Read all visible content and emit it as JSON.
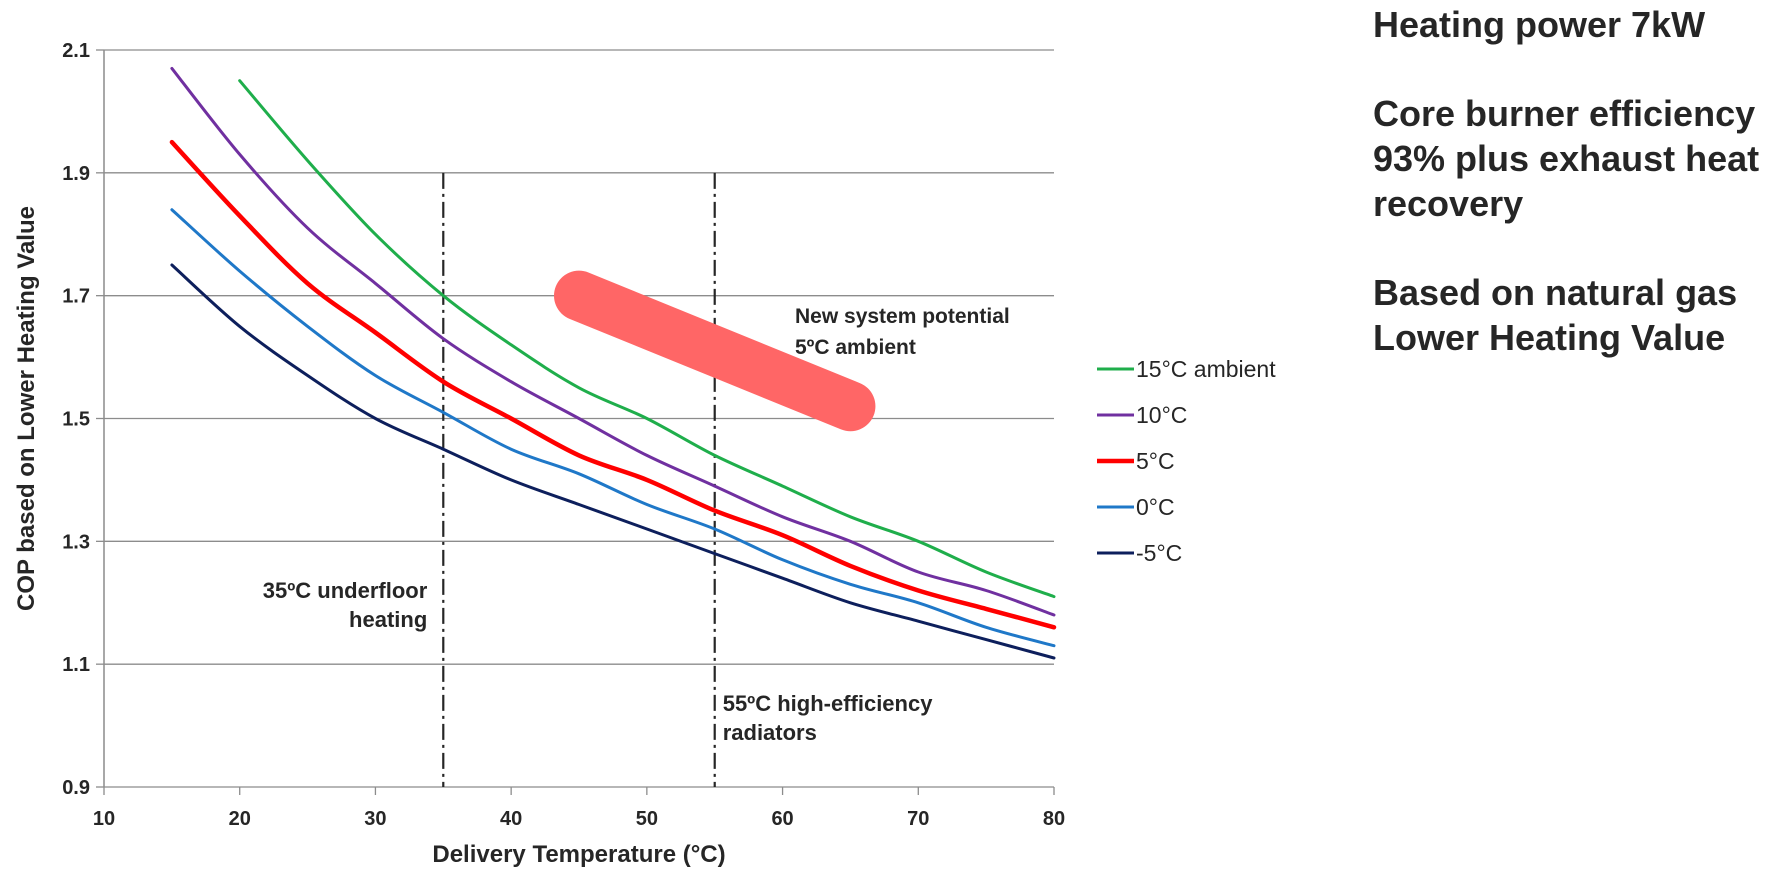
{
  "chart_data": {
    "type": "line",
    "xlabel": "Delivery Temperature (°C)",
    "ylabel": "COP based on Lower Heating Value",
    "xlim": [
      10,
      80
    ],
    "ylim": [
      0.9,
      2.1
    ],
    "x_ticks": [
      "10",
      "20",
      "30",
      "40",
      "50",
      "60",
      "70",
      "80"
    ],
    "y_ticks": [
      "0.9",
      "1.1",
      "1.3",
      "1.5",
      "1.7",
      "1.9",
      "2.1"
    ],
    "grid": "horizontal",
    "legend_position": "right",
    "series": [
      {
        "name": "15°C ambient",
        "color": "#1fae4b",
        "x": [
          20,
          25,
          30,
          35,
          40,
          45,
          50,
          55,
          60,
          65,
          70,
          75,
          80
        ],
        "y": [
          2.05,
          1.92,
          1.8,
          1.7,
          1.62,
          1.55,
          1.5,
          1.44,
          1.39,
          1.34,
          1.3,
          1.25,
          1.21
        ]
      },
      {
        "name": "10°C",
        "color": "#7030a0",
        "x": [
          15,
          20,
          25,
          30,
          35,
          40,
          45,
          50,
          55,
          60,
          65,
          70,
          75,
          80
        ],
        "y": [
          2.07,
          1.93,
          1.81,
          1.72,
          1.63,
          1.56,
          1.5,
          1.44,
          1.39,
          1.34,
          1.3,
          1.25,
          1.22,
          1.18
        ]
      },
      {
        "name": "5°C",
        "color": "#ff0000",
        "x": [
          15,
          20,
          25,
          30,
          35,
          40,
          45,
          50,
          55,
          60,
          65,
          70,
          75,
          80
        ],
        "y": [
          1.95,
          1.83,
          1.72,
          1.64,
          1.56,
          1.5,
          1.44,
          1.4,
          1.35,
          1.31,
          1.26,
          1.22,
          1.19,
          1.16
        ]
      },
      {
        "name": "0°C",
        "color": "#1f78c8",
        "x": [
          15,
          20,
          25,
          30,
          35,
          40,
          45,
          50,
          55,
          60,
          65,
          70,
          75,
          80
        ],
        "y": [
          1.84,
          1.74,
          1.65,
          1.57,
          1.51,
          1.45,
          1.41,
          1.36,
          1.32,
          1.27,
          1.23,
          1.2,
          1.16,
          1.13
        ]
      },
      {
        "name": "-5°C",
        "color": "#0d1f5c",
        "x": [
          15,
          20,
          25,
          30,
          35,
          40,
          45,
          50,
          55,
          60,
          65,
          70,
          75,
          80
        ],
        "y": [
          1.75,
          1.65,
          1.57,
          1.5,
          1.45,
          1.4,
          1.36,
          1.32,
          1.28,
          1.24,
          1.2,
          1.17,
          1.14,
          1.11
        ]
      }
    ],
    "vlines": [
      {
        "x": 35,
        "label_line1": "35ºC underfloor",
        "label_line2": "heating"
      },
      {
        "x": 55,
        "label_line1": "55ºC high-efficiency",
        "label_line2": "radiators"
      }
    ],
    "highlight": {
      "x": [
        45,
        65
      ],
      "y": [
        1.7,
        1.52
      ],
      "color": "#ff6666",
      "label_line1": "New system potential",
      "label_line2": "5ºC ambient"
    }
  },
  "notes": [
    "Heating power 7kW",
    "Core burner efficiency\n93% plus exhaust heat\nrecovery",
    "Based on natural gas\nLower Heating Value"
  ]
}
